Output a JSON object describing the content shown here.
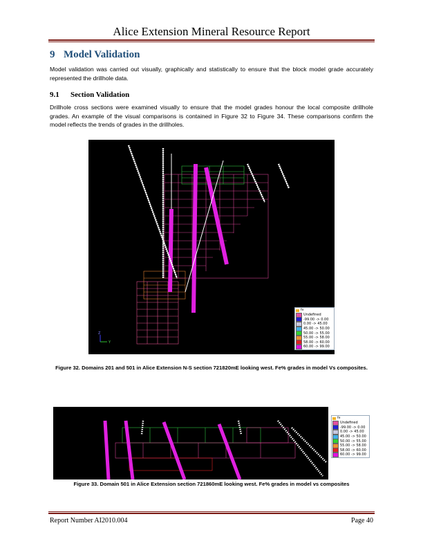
{
  "header": {
    "title": "Alice Extension Mineral Resource Report"
  },
  "section": {
    "number": "9",
    "title": "Model Validation",
    "body": "Model validation was carried out visually, graphically and statistically to ensure that the block model grade accurately represented the drillhole data."
  },
  "subsection": {
    "number": "9.1",
    "title": "Section Validation",
    "body": "Drillhole cross sections were examined visually to ensure that the model grades honour the local composite drillhole grades.  An example of the visual comparisons is contained in Figure 32 to Figure 34.  These comparisons confirm the model reflects the trends of grades in the drillholes."
  },
  "legend": {
    "title": "fe",
    "items": [
      {
        "label": "Undefined",
        "color": "#e04fa0"
      },
      {
        "label": "-99.00 -> 0.00",
        "color": "#2020d0"
      },
      {
        "label": "0.00 -> 45.00",
        "color": "#c8c8e0"
      },
      {
        "label": "45.00 -> 50.00",
        "color": "#40b0e8"
      },
      {
        "label": "50.00 -> 55.00",
        "color": "#30d030"
      },
      {
        "label": "55.00 -> 58.00",
        "color": "#f09030"
      },
      {
        "label": "58.00 -> 60.00",
        "color": "#e02020"
      },
      {
        "label": "60.00 -> 99.00",
        "color": "#e010e0"
      }
    ]
  },
  "figure32": {
    "caption": "Figure 32. Domains 201 and 501 in Alice Extension N-S section 721820mE looking west.  Fe% grades in model Vs composites.",
    "axis_z": "Z",
    "axis_y": "Y"
  },
  "figure33": {
    "caption": "Figure 33. Domain 501 in Alice Extension section 721860mE looking west.  Fe% grades in model vs composites"
  },
  "footer": {
    "report_number": "Report Number AI2010.004",
    "page": "Page 40"
  }
}
